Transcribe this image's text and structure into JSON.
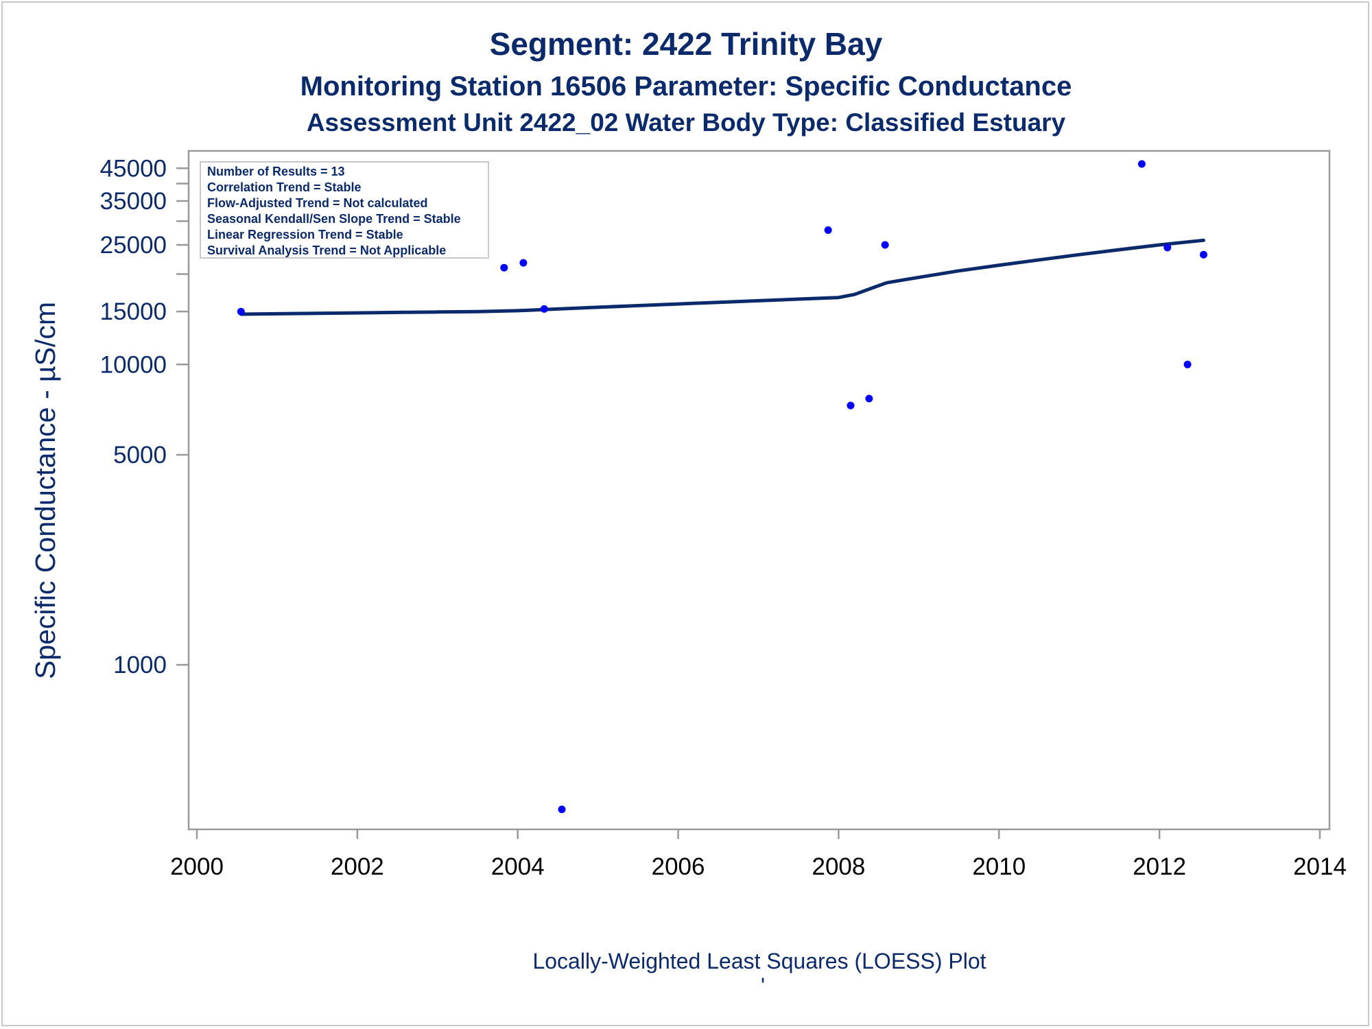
{
  "titles": {
    "line1": "Segment: 2422  Trinity Bay",
    "line2": "Monitoring Station 16506 Parameter: Specific Conductance",
    "line3": "Assessment Unit 2422_02   Water Body Type: Classified Estuary"
  },
  "stats_box": [
    "Number of Results = 13",
    "Correlation Trend = Stable",
    "Flow-Adjusted Trend = Not calculated",
    "Seasonal Kendall/Sen Slope Trend = Stable",
    "Linear Regression Trend = Stable",
    "Survival Analysis Trend = Not Applicable"
  ],
  "footnote": "Locally-Weighted Least Squares (LOESS) Plot",
  "footnote_mark": "'",
  "colors": {
    "text": "#0b2a6b",
    "points": "#0000ff",
    "loess_line": "#0b2a6b",
    "axis": "#999999"
  },
  "chart_data": {
    "type": "scatter",
    "ylabel": "Specific Conductance -  µS/cm",
    "xlabel": "",
    "yscale": "log",
    "xlim": [
      2000,
      2014
    ],
    "ylim": [
      300,
      48000
    ],
    "x_ticks": [
      2000,
      2002,
      2004,
      2006,
      2008,
      2010,
      2012,
      2014
    ],
    "x_tick_labels": [
      "2000",
      "2002",
      "2004",
      "2006",
      "2008",
      "2010",
      "2012",
      "2014"
    ],
    "y_ticks": [
      45000,
      35000,
      25000,
      15000,
      10000,
      5000,
      1000
    ],
    "y_tick_labels": [
      "45000",
      "35000",
      "25000",
      "15000",
      "10000",
      "5000",
      "1000"
    ],
    "y_minor_ticks": [
      40000,
      30000,
      20000
    ],
    "grid": false,
    "series": [
      {
        "type": "scatter",
        "x": [
          2000.55,
          2003.83,
          2004.07,
          2004.33,
          2004.55,
          2007.87,
          2008.15,
          2008.38,
          2008.58,
          2011.78,
          2012.1,
          2012.35,
          2012.55
        ],
        "y": [
          15000,
          21000,
          21800,
          15300,
          330,
          28000,
          7300,
          7700,
          25000,
          46500,
          24500,
          10000,
          23200
        ]
      },
      {
        "type": "line",
        "x": [
          2000.55,
          2001.0,
          2001.5,
          2002.0,
          2002.5,
          2003.0,
          2003.5,
          2004.0,
          2004.5,
          2005.0,
          2005.5,
          2006.0,
          2006.5,
          2007.0,
          2007.5,
          2008.0,
          2008.2,
          2008.4,
          2008.6,
          2008.8,
          2009.0,
          2009.5,
          2010.0,
          2010.5,
          2011.0,
          2011.5,
          2012.0,
          2012.3,
          2012.55
        ],
        "y": [
          14700,
          14750,
          14800,
          14850,
          14900,
          14950,
          15000,
          15100,
          15300,
          15500,
          15700,
          15900,
          16100,
          16300,
          16500,
          16700,
          17100,
          17900,
          18700,
          19100,
          19500,
          20500,
          21400,
          22300,
          23200,
          24100,
          25000,
          25500,
          25900
        ]
      }
    ]
  }
}
